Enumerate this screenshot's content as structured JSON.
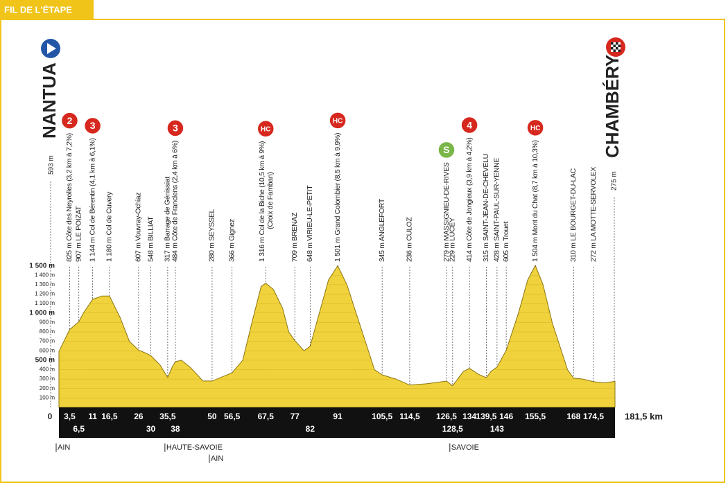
{
  "header": "FIL DE L'ÉTAPE",
  "chart_data": {
    "type": "area",
    "color": "#f0d23c",
    "grid": true,
    "start": {
      "name": "NANTUA",
      "elevation": "593 m"
    },
    "finish": {
      "name": "CHAMBÉRY",
      "elevation": "275 m"
    },
    "x": [
      0,
      3.5,
      6.5,
      8,
      11,
      14,
      16.5,
      20,
      23,
      26,
      28,
      30,
      33,
      35.5,
      37,
      38,
      40,
      43,
      47,
      50,
      53,
      56.5,
      60,
      63,
      66,
      67.5,
      70,
      73,
      75,
      77,
      80,
      82,
      85,
      88,
      91,
      94,
      97,
      100,
      103,
      105.5,
      110,
      114.5,
      120,
      126.5,
      128.5,
      132,
      134,
      137,
      139.5,
      141,
      143,
      146,
      150,
      153,
      155.5,
      158,
      161,
      164,
      166,
      168,
      171,
      174.5,
      178,
      181.5
    ],
    "values": [
      593,
      825,
      907,
      1000,
      1144,
      1180,
      1180,
      950,
      700,
      607,
      580,
      548,
      450,
      317,
      430,
      484,
      500,
      420,
      280,
      280,
      320,
      366,
      500,
      900,
      1280,
      1316,
      1250,
      1050,
      800,
      709,
      600,
      648,
      1000,
      1350,
      1501,
      1300,
      1000,
      700,
      400,
      345,
      300,
      236,
      250,
      279,
      229,
      380,
      414,
      350,
      315,
      380,
      428,
      605,
      1000,
      1350,
      1504,
      1300,
      900,
      600,
      400,
      310,
      300,
      272,
      260,
      275
    ],
    "xlim": [
      0,
      181.5
    ],
    "x_end_label": "181,5 km",
    "ylim": [
      0,
      1600
    ],
    "xticks": [
      0,
      {
        "value": 3.5,
        "label": "3,5"
      },
      {
        "value": 6.5,
        "label": "6,5"
      },
      11,
      {
        "value": 16.5,
        "label": "16,5"
      },
      26,
      30,
      {
        "value": 35.5,
        "label": "35,5"
      },
      38,
      50,
      {
        "value": 56.5,
        "label": "56,5"
      },
      {
        "value": 67.5,
        "label": "67,5"
      },
      77,
      82,
      91,
      {
        "value": 105.5,
        "label": "105,5"
      },
      {
        "value": 114.5,
        "label": "114,5"
      },
      {
        "value": 126.5,
        "label": "126,5"
      },
      {
        "value": 128.5,
        "label": "128,5"
      },
      134,
      {
        "value": 139.5,
        "label": "139,5"
      },
      143,
      146,
      {
        "value": 155.5,
        "label": "155,5"
      },
      168,
      {
        "value": 174.5,
        "label": "174,5"
      }
    ],
    "yticks": [
      {
        "value": 100,
        "label": "100 m"
      },
      {
        "value": 200,
        "label": "200 m"
      },
      {
        "value": 300,
        "label": "300 m"
      },
      {
        "value": 400,
        "label": "400 m"
      },
      {
        "value": 500,
        "label": "500 m"
      },
      {
        "value": 600,
        "label": "600 m"
      },
      {
        "value": 700,
        "label": "700 m"
      },
      {
        "value": 800,
        "label": "800 m"
      },
      {
        "value": 900,
        "label": "900 m"
      },
      {
        "value": 1000,
        "label": "1 000 m"
      },
      {
        "value": 1100,
        "label": "1 100 m"
      },
      {
        "value": 1200,
        "label": "1 200 m"
      },
      {
        "value": 1300,
        "label": "1 300 m"
      },
      {
        "value": 1400,
        "label": "1 400 m"
      },
      {
        "value": 1500,
        "label": "1 500 m"
      }
    ],
    "waypoints": [
      {
        "km": 3.5,
        "label": "825 m Côte des Neyrolles (3,2 km à 7,2%)"
      },
      {
        "km": 6.5,
        "label": "907 m LE POIZAT"
      },
      {
        "km": 11,
        "label": "1 144 m Col de Bérentin (4,1 km à 6,1%)"
      },
      {
        "km": 16.5,
        "label": "1 180 m Col de Cuvery"
      },
      {
        "km": 26,
        "label": "607 m Vouvray-Ochiaz"
      },
      {
        "km": 30,
        "label": "548 m BILLIAT"
      },
      {
        "km": 35.5,
        "label": "317 m Barrage de Génissiat"
      },
      {
        "km": 38,
        "label": "484 m Côte de Franclens (2,4 km à 6%)"
      },
      {
        "km": 50,
        "label": "280 m SEYSSEL"
      },
      {
        "km": 56.5,
        "label": "366 m Gignez"
      },
      {
        "km": 67.5,
        "label": "1 316 m Col de la Biche (10,5 km à 9%)",
        "sub": "(Croix de Famban)"
      },
      {
        "km": 77,
        "label": "709 m BRENAZ"
      },
      {
        "km": 82,
        "label": "648 m VIRIEU-LE-PETIT"
      },
      {
        "km": 91,
        "label": "1 501 m Grand Colombier (8,5 km à 9,9%)"
      },
      {
        "km": 105.5,
        "label": "345 m ANGLEFORT"
      },
      {
        "km": 114.5,
        "label": "236 m CULOZ"
      },
      {
        "km": 126.5,
        "label": "279 m MASSIGNIEU-DE-RIVES"
      },
      {
        "km": 128.5,
        "label": "229 m LUCEY"
      },
      {
        "km": 134,
        "label": "414 m Côte de Jongieux (3,9 km à 4,2%)"
      },
      {
        "km": 139.5,
        "label": "315 m SAINT-JEAN-DE-CHEVELU"
      },
      {
        "km": 143,
        "label": "428 m SAINT-PAUL-SUR-YENNE"
      },
      {
        "km": 146,
        "label": "605 m Trouet"
      },
      {
        "km": 155.5,
        "label": "1 504 m Mont du Chat (8,7 km à 10,3%)"
      },
      {
        "km": 168,
        "label": "310 m LE BOURGET-DU-LAC"
      },
      {
        "km": 174.5,
        "label": "272 m LA MOTTE-SERVOLEX"
      }
    ],
    "badges": [
      {
        "waypoint": 0,
        "label": "2",
        "color": "#d6281e"
      },
      {
        "waypoint": 2,
        "label": "3",
        "color": "#d6281e"
      },
      {
        "waypoint": 7,
        "label": "3",
        "color": "#d6281e"
      },
      {
        "waypoint": 10,
        "label": "HC",
        "color": "#d6281e"
      },
      {
        "waypoint": 13,
        "label": "HC",
        "color": "#d6281e"
      },
      {
        "waypoint": 16,
        "label": "S",
        "color": "#7ab648"
      },
      {
        "waypoint": 18,
        "label": "4",
        "color": "#d6281e"
      },
      {
        "waypoint": 22,
        "label": "HC",
        "color": "#d6281e"
      }
    ],
    "regions": [
      {
        "km": 0,
        "name": "AIN"
      },
      {
        "km": 35.5,
        "name": "HAUTE-SAVOIE"
      },
      {
        "km": 50,
        "name": "AIN"
      },
      {
        "km": 128.5,
        "name": "SAVOIE"
      }
    ]
  }
}
